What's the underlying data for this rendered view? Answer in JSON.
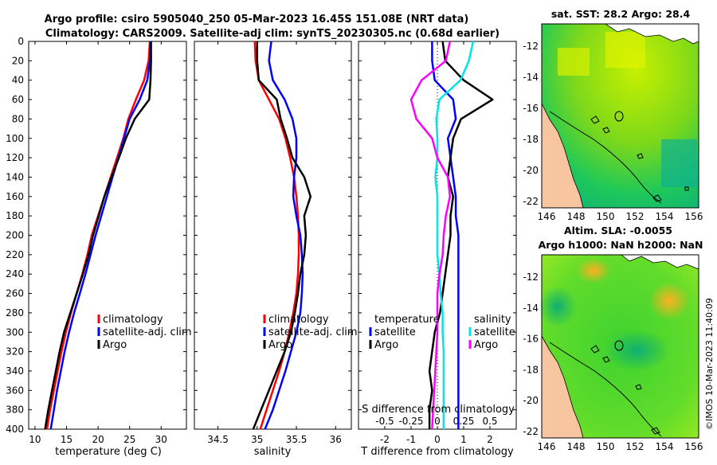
{
  "header": {
    "line1": "Argo profile: csiro 5905040_250 05-Mar-2023 16.45S 151.08E (NRT data)",
    "line2": "Climatology: CARS2009. Satellite-adj clim: synTS_20230305.nc (0.68d earlier)"
  },
  "colors": {
    "climatology": "#ff0000",
    "satellite": "#0000ff",
    "argo": "#000000",
    "salinity": "#ff00ff",
    "salinity_satellite": "#00e5e5",
    "land": "#f7c59f"
  },
  "chart_data": [
    {
      "type": "line",
      "name": "temperature-profile",
      "xlabel": "temperature (deg C)",
      "ylabel": "",
      "xlim": [
        9,
        34
      ],
      "ylim": [
        400,
        0
      ],
      "xticks": [
        10,
        15,
        20,
        25,
        30
      ],
      "yticks": [
        0,
        20,
        40,
        60,
        80,
        100,
        120,
        140,
        160,
        180,
        200,
        220,
        240,
        260,
        280,
        300,
        320,
        340,
        360,
        380,
        400
      ],
      "legend": [
        "climatology",
        "satellite-adj. clim",
        "Argo"
      ],
      "series": [
        {
          "name": "climatology",
          "color": "#ff0000",
          "x": [
            28.2,
            28.0,
            27.3,
            26.0,
            24.8,
            24.0,
            23.0,
            22.0,
            21.0,
            20.0,
            19.0,
            18.3,
            17.5,
            16.6,
            15.7,
            14.9,
            14.2,
            13.6,
            13.0,
            12.4,
            11.9
          ],
          "y": [
            0,
            20,
            40,
            60,
            80,
            100,
            120,
            140,
            160,
            180,
            200,
            220,
            240,
            260,
            280,
            300,
            320,
            340,
            360,
            380,
            400
          ]
        },
        {
          "name": "satellite-adj. clim",
          "color": "#0000ff",
          "x": [
            28.3,
            28.2,
            27.8,
            26.6,
            25.0,
            24.1,
            23.2,
            22.3,
            21.4,
            20.5,
            19.6,
            18.8,
            18.0,
            17.1,
            16.2,
            15.4,
            14.7,
            14.1,
            13.5,
            13.0,
            12.5
          ],
          "y": [
            0,
            20,
            40,
            60,
            80,
            100,
            120,
            140,
            160,
            180,
            200,
            220,
            240,
            260,
            280,
            300,
            320,
            340,
            360,
            380,
            400
          ]
        },
        {
          "name": "Argo",
          "color": "#000000",
          "x": [
            28.4,
            28.4,
            28.3,
            28.1,
            25.8,
            24.4,
            23.3,
            22.1,
            21.0,
            20.1,
            19.2,
            18.5,
            17.6,
            16.6,
            15.6,
            14.6,
            13.9,
            13.3,
            12.7,
            12.1,
            11.6
          ],
          "y": [
            0,
            20,
            40,
            60,
            80,
            100,
            120,
            140,
            160,
            180,
            200,
            220,
            240,
            260,
            280,
            300,
            320,
            340,
            360,
            380,
            400
          ]
        }
      ]
    },
    {
      "type": "line",
      "name": "salinity-profile",
      "xlabel": "salinity",
      "ylabel": "",
      "xlim": [
        34.2,
        36.2
      ],
      "ylim": [
        400,
        0
      ],
      "xticks": [
        34.5,
        35,
        35.5,
        36
      ],
      "legend": [
        "climatology",
        "satellite-adj. clim",
        "Argo"
      ],
      "series": [
        {
          "name": "climatology",
          "color": "#ff0000",
          "x": [
            34.97,
            34.98,
            35.02,
            35.15,
            35.28,
            35.36,
            35.42,
            35.47,
            35.5,
            35.52,
            35.53,
            35.53,
            35.52,
            35.5,
            35.46,
            35.41,
            35.35,
            35.28,
            35.2,
            35.12,
            35.04
          ],
          "y": [
            0,
            20,
            40,
            60,
            80,
            100,
            120,
            140,
            160,
            180,
            200,
            220,
            240,
            260,
            280,
            300,
            320,
            340,
            360,
            380,
            400
          ]
        },
        {
          "name": "satellite-adj. clim",
          "color": "#0000ff",
          "x": [
            35.18,
            35.15,
            35.2,
            35.35,
            35.45,
            35.5,
            35.5,
            35.47,
            35.46,
            35.5,
            35.55,
            35.57,
            35.58,
            35.57,
            35.55,
            35.5,
            35.43,
            35.36,
            35.28,
            35.2,
            35.1
          ],
          "y": [
            0,
            20,
            40,
            60,
            80,
            100,
            120,
            140,
            160,
            180,
            200,
            220,
            240,
            260,
            280,
            300,
            320,
            340,
            360,
            380,
            400
          ]
        },
        {
          "name": "Argo",
          "color": "#000000",
          "x": [
            35.0,
            35.0,
            35.02,
            35.25,
            35.3,
            35.38,
            35.45,
            35.6,
            35.68,
            35.6,
            35.62,
            35.6,
            35.55,
            35.52,
            35.48,
            35.43,
            35.35,
            35.25,
            35.15,
            35.05,
            34.95
          ],
          "y": [
            0,
            20,
            40,
            60,
            80,
            100,
            120,
            140,
            160,
            180,
            200,
            220,
            240,
            260,
            280,
            300,
            320,
            340,
            360,
            380,
            400
          ]
        }
      ]
    },
    {
      "type": "line",
      "name": "difference-profile",
      "xlabel": "T difference from climatology",
      "x2label": "S difference from climatology",
      "ylabel": "",
      "xlim": [
        -3,
        3
      ],
      "ylim": [
        400,
        0
      ],
      "xticks": [
        -2,
        -1,
        0,
        1,
        2
      ],
      "x2lim": [
        -0.75,
        0.75
      ],
      "x2ticks": [
        -0.5,
        -0.25,
        0,
        0.25,
        0.5
      ],
      "x2ticklabels": [
        "-0.5",
        "-0.25",
        "0",
        "0.25",
        "0.5"
      ],
      "legend_temperature": "temperature",
      "legend_salinity": "salinity",
      "legend_items": [
        "satellite",
        "Argo"
      ],
      "series": [
        {
          "name": "temperature satellite",
          "color": "#0000ff",
          "axis": "T",
          "x": [
            -0.2,
            -0.2,
            -0.1,
            0.6,
            0.7,
            0.4,
            0.5,
            0.6,
            0.7,
            0.7,
            0.8,
            0.8,
            0.8,
            0.8,
            0.8,
            0.8,
            0.8,
            0.8,
            0.8,
            0.8,
            0.8
          ],
          "y": [
            0,
            20,
            40,
            60,
            80,
            100,
            120,
            140,
            160,
            180,
            200,
            220,
            240,
            260,
            280,
            300,
            320,
            340,
            360,
            380,
            400
          ]
        },
        {
          "name": "temperature Argo",
          "color": "#000000",
          "axis": "T",
          "x": [
            0.2,
            0.3,
            1.0,
            2.1,
            0.9,
            0.6,
            0.5,
            0.4,
            0.6,
            0.5,
            0.5,
            0.4,
            0.3,
            0.2,
            0.1,
            -0.1,
            -0.2,
            -0.3,
            -0.2,
            -0.3,
            -0.3
          ],
          "y": [
            0,
            20,
            40,
            60,
            80,
            100,
            120,
            140,
            160,
            180,
            200,
            220,
            240,
            260,
            280,
            300,
            320,
            340,
            360,
            380,
            400
          ]
        },
        {
          "name": "salinity satellite",
          "color": "#00e5e5",
          "axis": "S",
          "x": [
            0.34,
            0.3,
            0.22,
            0.02,
            -0.01,
            0.0,
            0.0,
            -0.02,
            0.0,
            0.0,
            0.0,
            0.0,
            0.02,
            0.03,
            0.05,
            0.05,
            0.06,
            0.06,
            0.06,
            0.06,
            0.06
          ],
          "y": [
            0,
            20,
            40,
            60,
            80,
            100,
            120,
            140,
            160,
            180,
            200,
            220,
            240,
            260,
            280,
            300,
            320,
            340,
            360,
            380,
            400
          ]
        },
        {
          "name": "salinity Argo",
          "color": "#ff00ff",
          "axis": "S",
          "x": [
            0.12,
            0.08,
            -0.15,
            -0.25,
            -0.2,
            -0.05,
            0.0,
            0.1,
            0.12,
            0.08,
            0.06,
            0.05,
            0.02,
            0.0,
            0.0,
            0.0,
            -0.01,
            -0.02,
            -0.03,
            -0.04,
            -0.05
          ],
          "y": [
            0,
            20,
            40,
            60,
            80,
            100,
            120,
            140,
            160,
            180,
            200,
            220,
            240,
            260,
            280,
            300,
            320,
            340,
            360,
            380,
            400
          ]
        }
      ]
    }
  ],
  "maps": {
    "sst": {
      "title": "sat. SST: 28.2 Argo: 28.4",
      "xticks": [
        "146",
        "148",
        "150",
        "152",
        "154",
        "156"
      ],
      "yticks": [
        "-12",
        "-14",
        "-16",
        "-18",
        "-20",
        "-22"
      ]
    },
    "sla": {
      "title1": "Altim. SLA: -0.0055",
      "title2": "Argo h1000: NaN h2000: NaN",
      "xticks": [
        "146",
        "148",
        "150",
        "152",
        "154",
        "156"
      ],
      "yticks": [
        "-12",
        "-14",
        "-16",
        "-18",
        "-20",
        "-22"
      ]
    }
  },
  "stamp": "©IMOS 10-Mar-2023 11:40:09"
}
